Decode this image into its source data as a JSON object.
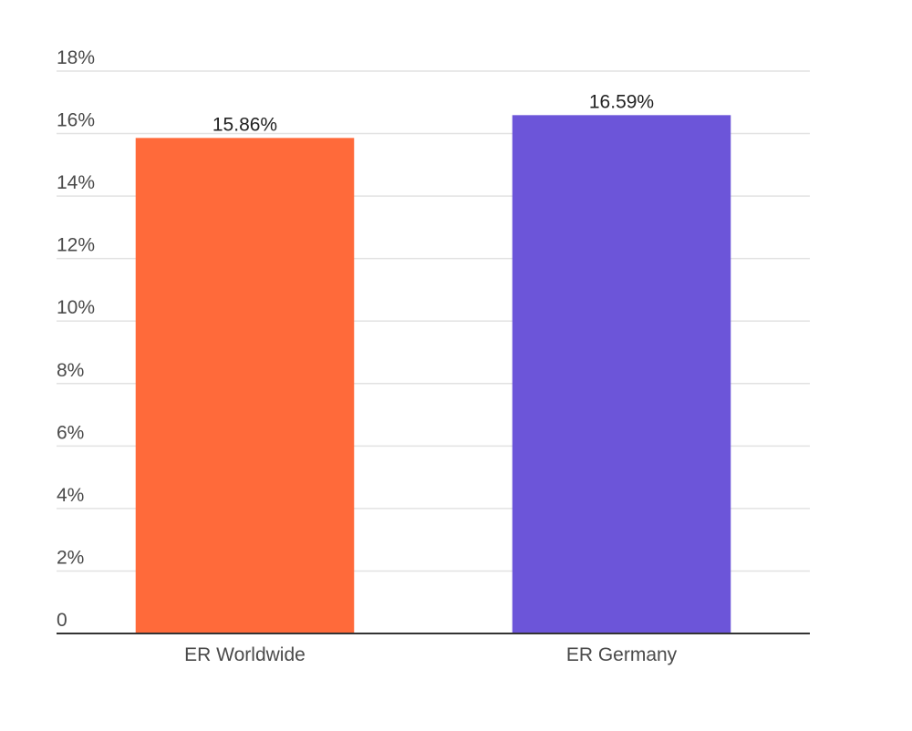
{
  "chart_data": {
    "type": "bar",
    "title": "",
    "xlabel": "",
    "ylabel": "",
    "categories": [
      "ER Worldwide",
      "ER Germany"
    ],
    "values": [
      15.86,
      16.59
    ],
    "data_labels": [
      "15.86%",
      "16.59%"
    ],
    "bar_colors": [
      "#ff6a3a",
      "#6c55d9"
    ],
    "ylim": [
      0,
      18
    ],
    "yticks": [
      0,
      2,
      4,
      6,
      8,
      10,
      12,
      14,
      16,
      18
    ],
    "ytick_labels": [
      "0",
      "2%",
      "4%",
      "6%",
      "8%",
      "10%",
      "12%",
      "14%",
      "16%",
      "18%"
    ],
    "grid": true,
    "legend": "none"
  }
}
